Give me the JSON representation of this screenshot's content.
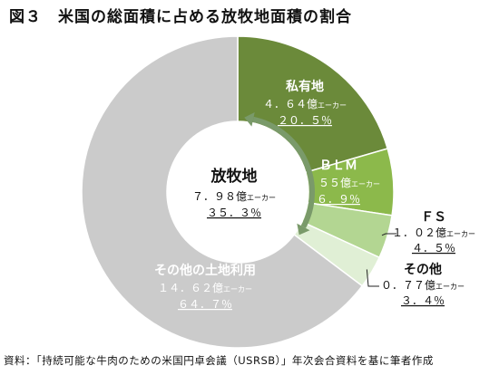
{
  "figure": {
    "title": "図３　米国の総面積に占める放牧地面積の割合",
    "source": "資料：「持続可能な牛肉のための米国円卓会議（USRSB）」年次会合資料を基に筆者作成"
  },
  "chart_data": {
    "type": "pie",
    "style": "donut",
    "title": "図３　米国の総面積に占める放牧地面積の割合",
    "slices": [
      {
        "label": "私有地",
        "value_text": "４．６４億",
        "unit": "エーカー",
        "percent_text": "２０．５％",
        "percent": 20.5,
        "color": "#6b8a3a",
        "label_color": "#ffffff"
      },
      {
        "label": "ＢＬＭ",
        "value_text": "１．５５億",
        "unit": "エーカー",
        "percent_text": "６．９％",
        "percent": 6.9,
        "color": "#8cb94b",
        "label_color": "#ffffff"
      },
      {
        "label": "ＦＳ",
        "value_text": "１．０２億",
        "unit": "エーカー",
        "percent_text": "４．５％",
        "percent": 4.5,
        "color": "#b3d692",
        "label_color": "#111111"
      },
      {
        "label": "その他",
        "value_text": "０．７７億",
        "unit": "エーカー",
        "percent_text": "３．４％",
        "percent": 3.4,
        "color": "#e0efd5",
        "label_color": "#111111"
      },
      {
        "label": "その他の土地利用",
        "value_text": "１４．６２億",
        "unit": "エーカー",
        "percent_text": "６４．７％",
        "percent": 64.7,
        "color": "#cbcbcb",
        "label_color": "#ffffff"
      }
    ],
    "center": {
      "label": "放牧地",
      "value_text": "７．９８億",
      "unit": "エーカー",
      "percent_text": "３５．３％",
      "percent": 35.3,
      "arrow_color": "#7a9a6a"
    }
  }
}
